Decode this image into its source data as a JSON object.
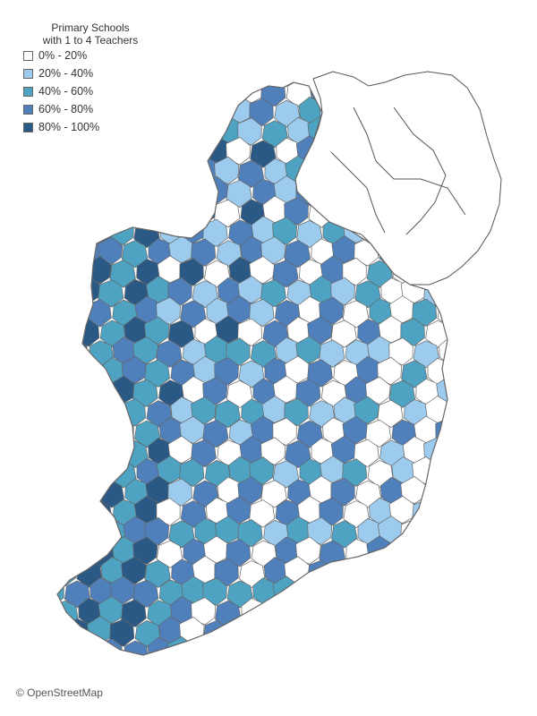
{
  "legend": {
    "title_line1": "Primary Schools",
    "title_line2": "with 1 to 4 Teachers",
    "items": [
      {
        "label": "0% - 20%",
        "color": "#ffffff"
      },
      {
        "label": "20% - 40%",
        "color": "#9ccbee"
      },
      {
        "label": "40% - 60%",
        "color": "#4ea3c3"
      },
      {
        "label": "60% - 80%",
        "color": "#4f80bc"
      },
      {
        "label": "80% - 100%",
        "color": "#2b5985"
      }
    ]
  },
  "attribution": "© OpenStreetMap",
  "colors": {
    "border": "#666666",
    "ni_border": "#555555"
  }
}
